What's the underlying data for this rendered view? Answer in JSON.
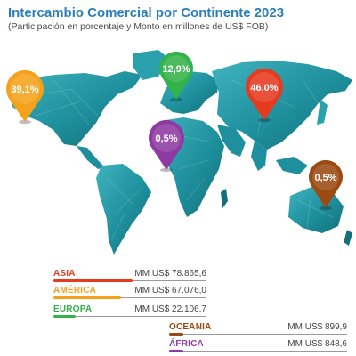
{
  "header": {
    "title": "Intercambio Comercial por Continente 2023",
    "subtitle": "(Participación en porcentaje y Monto en millones de US$ FOB)"
  },
  "chart_data": {
    "type": "map",
    "series": [
      {
        "name": "ASIA",
        "share_label": "46,0%",
        "share": 46.0,
        "amount_label": "MM US$ 78.865,6",
        "amount": 78865.6,
        "color": "#e63a1f"
      },
      {
        "name": "AMÉRICA",
        "share_label": "39,1%",
        "share": 39.1,
        "amount_label": "MM US$ 67.076,0",
        "amount": 67076.0,
        "color": "#f5a21b"
      },
      {
        "name": "EUROPA",
        "share_label": "12,9%",
        "share": 12.9,
        "amount_label": "MM US$ 22.106,7",
        "amount": 22106.7,
        "color": "#34b24a"
      },
      {
        "name": "OCEANÍA",
        "share_label": "0,5%",
        "share": 0.5,
        "amount_label": "MM US$ 899,9",
        "amount": 899.9,
        "color": "#9a4a12"
      },
      {
        "name": "ÁFRICA",
        "share_label": "0,5%",
        "share": 0.5,
        "amount_label": "MM US$ 848,6",
        "amount": 848.6,
        "color": "#8e3aa3"
      }
    ]
  },
  "legend": [
    {
      "label": "ASIA",
      "value": "MM US$ 78.865,6"
    },
    {
      "label": "AMÉRICA",
      "value": "MM US$ 67.076,0"
    },
    {
      "label": "EUROPA",
      "value": "MM US$ 22.106,7"
    },
    {
      "label": "OCEANIA",
      "value": "MM US$ 899,9"
    },
    {
      "label": "ÁFRICA",
      "value": "MM US$ 848,6"
    }
  ],
  "colors": {
    "title": "#2a7fb8",
    "map": "#1e8f9c",
    "map_light": "#3fb3bf",
    "map_dark": "#136f7b"
  }
}
